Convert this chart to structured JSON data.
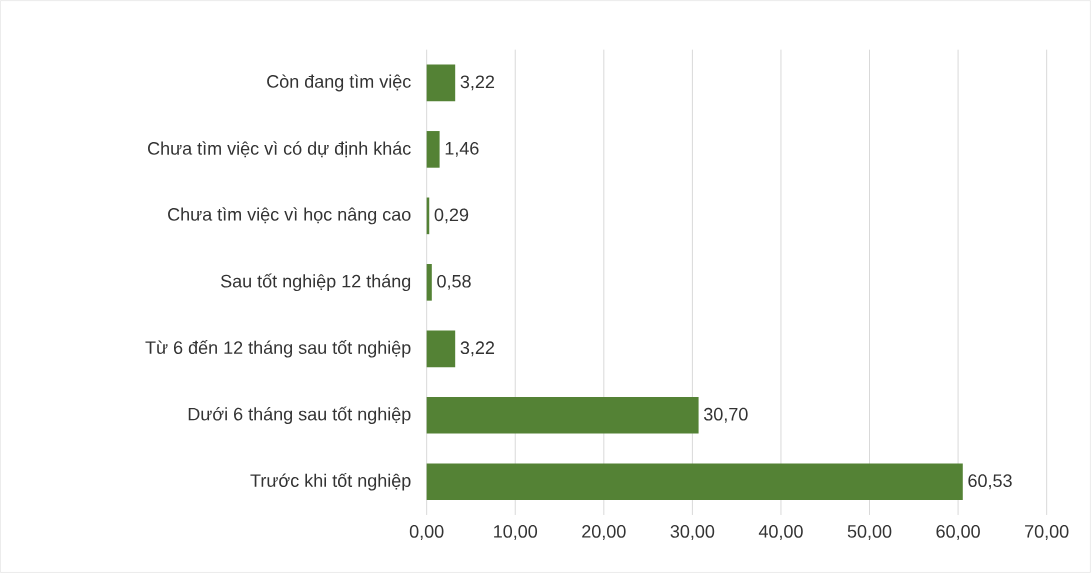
{
  "chart_data": {
    "type": "bar",
    "orientation": "horizontal",
    "categories": [
      "Còn đang tìm việc",
      "Chưa tìm việc vì có dự định khác",
      "Chưa tìm việc vì học nâng cao",
      "Sau tốt nghiệp 12 tháng",
      "Từ 6 đến 12 tháng sau tốt nghiệp",
      "Dưới 6 tháng sau tốt nghiệp",
      "Trước khi tốt nghiệp"
    ],
    "values": [
      3.22,
      1.46,
      0.29,
      0.58,
      3.22,
      30.7,
      60.53
    ],
    "value_labels": [
      "3,22",
      "1,46",
      "0,29",
      "0,58",
      "3,22",
      "30,70",
      "60,53"
    ],
    "color": "#548235",
    "xlim": [
      0,
      70
    ],
    "xticks": [
      {
        "value": 0,
        "label": "0,00"
      },
      {
        "value": 10,
        "label": "10,00"
      },
      {
        "value": 20,
        "label": "20,00"
      },
      {
        "value": 30,
        "label": "30,00"
      },
      {
        "value": 40,
        "label": "40,00"
      },
      {
        "value": 50,
        "label": "50,00"
      },
      {
        "value": 60,
        "label": "60,00"
      },
      {
        "value": 70,
        "label": "70,00"
      }
    ],
    "grid": "x"
  }
}
